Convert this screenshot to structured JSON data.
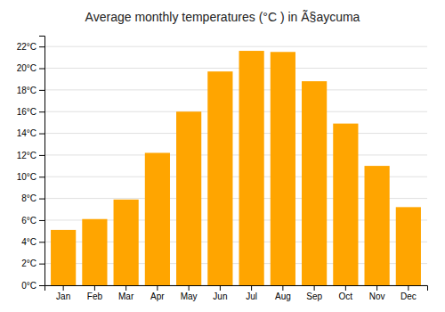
{
  "chart_data": {
    "type": "bar",
    "title": "Average monthly temperatures (°C ) in Ã§aycuma",
    "categories": [
      "Jan",
      "Feb",
      "Mar",
      "Apr",
      "May",
      "Jun",
      "Jul",
      "Aug",
      "Sep",
      "Oct",
      "Nov",
      "Dec"
    ],
    "values": [
      5.1,
      6.1,
      7.9,
      12.2,
      16.0,
      19.7,
      21.6,
      21.5,
      18.8,
      14.9,
      11.0,
      7.2
    ],
    "color": "#FFA500",
    "ylim": [
      0,
      23
    ],
    "yticks": [
      {
        "value": 0,
        "label": "0°C"
      },
      {
        "value": 2,
        "label": "2°C"
      },
      {
        "value": 4,
        "label": "4°C"
      },
      {
        "value": 6,
        "label": "6°C"
      },
      {
        "value": 8,
        "label": "8°C"
      },
      {
        "value": 10,
        "label": "10°C"
      },
      {
        "value": 12,
        "label": "12°C"
      },
      {
        "value": 14,
        "label": "14°C"
      },
      {
        "value": 16,
        "label": "16°C"
      },
      {
        "value": 18,
        "label": "18°C"
      },
      {
        "value": 20,
        "label": "20°C"
      },
      {
        "value": 22,
        "label": "22°C"
      }
    ],
    "grid": true
  }
}
